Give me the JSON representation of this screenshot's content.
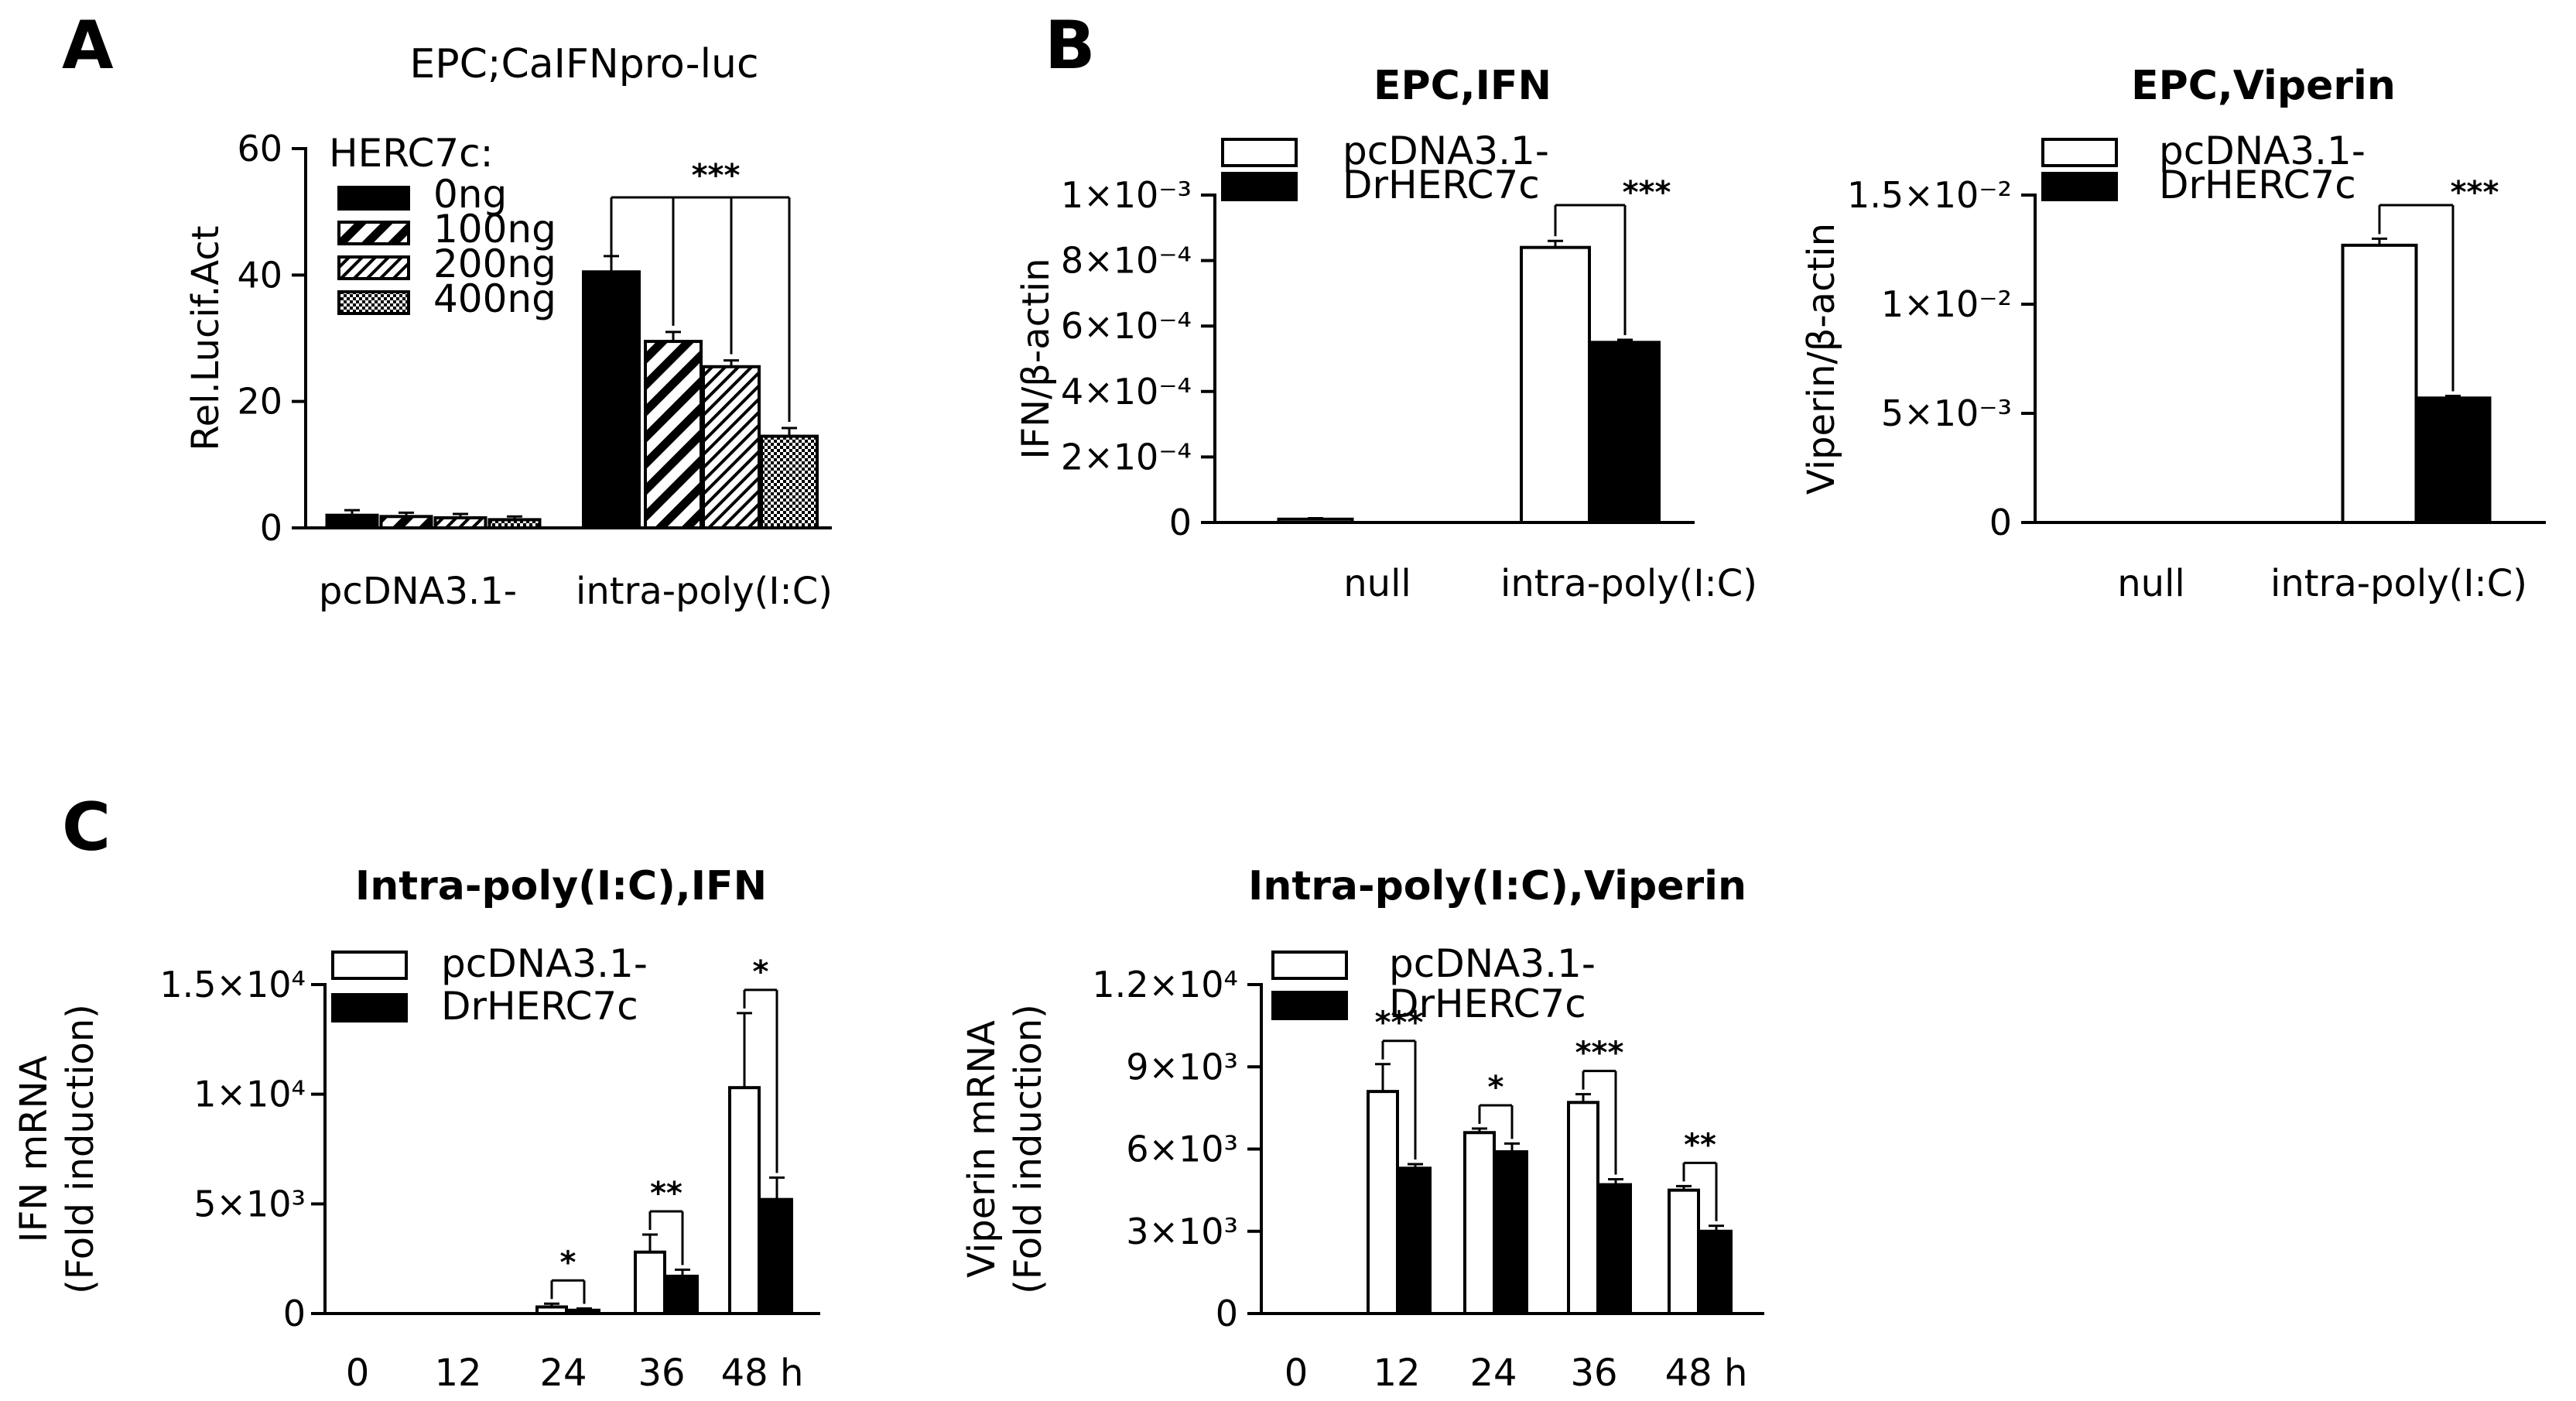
{
  "chart_data": [
    {
      "panel": "A",
      "type": "bar",
      "title": "EPC;CaIFNpro-luc",
      "xlabel": "",
      "ylabel": "Rel.Lucif.Act",
      "ylim": [
        0,
        60
      ],
      "yticks": [
        "0",
        "20",
        "40",
        "60"
      ],
      "categories": [
        "pcDNA3.1-",
        "intra-poly(I:C)"
      ],
      "legend_title": "HERC7c:",
      "legend_position": "top-left",
      "series": [
        {
          "name": "0ng",
          "fill": "solid",
          "values": [
            2,
            40.5
          ],
          "errors": [
            0.8,
            2.5
          ]
        },
        {
          "name": "100ng",
          "fill": "wide-stripe",
          "values": [
            1.8,
            29.5
          ],
          "errors": [
            0.6,
            1.5
          ]
        },
        {
          "name": "200ng",
          "fill": "fine-stripe",
          "values": [
            1.6,
            25.5
          ],
          "errors": [
            0.6,
            1.0
          ]
        },
        {
          "name": "400ng",
          "fill": "dots",
          "values": [
            1.3,
            14.5
          ],
          "errors": [
            0.5,
            1.3
          ]
        }
      ],
      "significance": [
        {
          "label": "***",
          "between": "0ng vs 100ng/200ng/400ng",
          "category": "intra-poly(I:C)"
        }
      ]
    },
    {
      "panel": "B",
      "type": "bar",
      "title": "EPC,IFN",
      "xlabel": "",
      "ylabel": "IFN/β-actin",
      "ylim": [
        0,
        0.001
      ],
      "yticks": [
        "0",
        "2×10⁻⁴",
        "4×10⁻⁴",
        "6×10⁻⁴",
        "8×10⁻⁴",
        "1×10⁻³"
      ],
      "categories": [
        "null",
        "intra-poly(I:C)"
      ],
      "legend_position": "top-left",
      "series": [
        {
          "name": "pcDNA3.1-",
          "fill": "white",
          "values": [
            1e-05,
            0.00084
          ],
          "errors": [
            3e-06,
            2e-05
          ]
        },
        {
          "name": "DrHERC7c",
          "fill": "black",
          "values": [
            0,
            0.00055
          ],
          "errors": [
            0,
            8e-06
          ]
        }
      ],
      "significance": [
        {
          "label": "***",
          "category": "intra-poly(I:C)"
        }
      ]
    },
    {
      "panel": "B",
      "type": "bar",
      "title": "EPC,Viperin",
      "xlabel": "",
      "ylabel": "Viperin/β-actin",
      "ylim": [
        0,
        0.015
      ],
      "yticks": [
        "0",
        "5×10⁻³",
        "1×10⁻²",
        "1.5×10⁻²"
      ],
      "categories": [
        "null",
        "intra-poly(I:C)"
      ],
      "legend_position": "top-left",
      "series": [
        {
          "name": "pcDNA3.1-",
          "fill": "white",
          "values": [
            0,
            0.0127
          ],
          "errors": [
            0,
            0.0003
          ]
        },
        {
          "name": "DrHERC7c",
          "fill": "black",
          "values": [
            0,
            0.0057
          ],
          "errors": [
            0,
            0.0001
          ]
        }
      ],
      "significance": [
        {
          "label": "***",
          "category": "intra-poly(I:C)"
        }
      ]
    },
    {
      "panel": "C",
      "type": "bar",
      "title": "Intra-poly(I:C),IFN",
      "xlabel": "",
      "ylabel": "IFN mRNA\n(Fold induction)",
      "ylim": [
        0,
        15000
      ],
      "yticks": [
        "0",
        "5×10³",
        "1×10⁴",
        "1.5×10⁴"
      ],
      "categories": [
        "0",
        "12",
        "24",
        "36",
        "48 h"
      ],
      "legend_position": "top-left",
      "series": [
        {
          "name": "pcDNA3.1-",
          "fill": "white",
          "values": [
            0,
            0,
            300,
            2800,
            10300
          ],
          "errors": [
            0,
            0,
            150,
            800,
            3400
          ]
        },
        {
          "name": "DrHERC7c",
          "fill": "black",
          "values": [
            0,
            0,
            150,
            1700,
            5200
          ],
          "errors": [
            0,
            0,
            80,
            300,
            1000
          ]
        }
      ],
      "significance": [
        {
          "label": "*",
          "category": "24"
        },
        {
          "label": "**",
          "category": "36"
        },
        {
          "label": "*",
          "category": "48 h"
        }
      ]
    },
    {
      "panel": "C",
      "type": "bar",
      "title": "Intra-poly(I:C),Viperin",
      "xlabel": "",
      "ylabel": "Viperin mRNA\n(Fold induction)",
      "ylim": [
        0,
        12000
      ],
      "yticks": [
        "0",
        "3×10³",
        "6×10³",
        "9×10³",
        "1.2×10⁴"
      ],
      "categories": [
        "0",
        "12",
        "24",
        "36",
        "48 h"
      ],
      "legend_position": "top-left",
      "series": [
        {
          "name": "pcDNA3.1-",
          "fill": "white",
          "values": [
            0,
            8100,
            6600,
            7700,
            4500
          ],
          "errors": [
            0,
            1000,
            150,
            300,
            150
          ]
        },
        {
          "name": "DrHERC7c",
          "fill": "black",
          "values": [
            0,
            5300,
            5900,
            4700,
            3000
          ],
          "errors": [
            0,
            150,
            300,
            200,
            200
          ]
        }
      ],
      "significance": [
        {
          "label": "***",
          "category": "12"
        },
        {
          "label": "*",
          "category": "24"
        },
        {
          "label": "***",
          "category": "36"
        },
        {
          "label": "**",
          "category": "48 h"
        }
      ]
    }
  ],
  "panel_labels": [
    "A",
    "B",
    "C"
  ]
}
